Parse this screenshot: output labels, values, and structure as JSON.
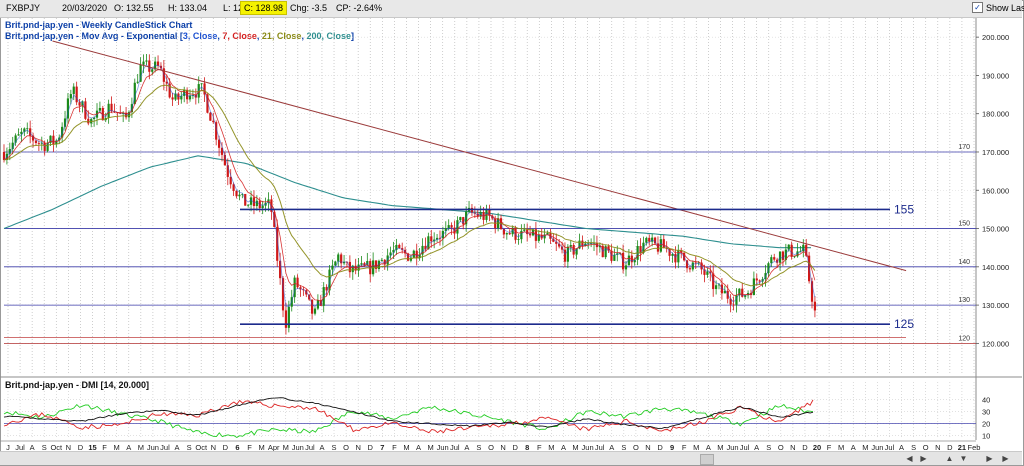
{
  "header": {
    "symbol": "FXBPJY",
    "date": "20/03/2020",
    "open": "O: 132.55",
    "high": "H: 133.04",
    "low": "L: 124.08",
    "close": "C: 128.98",
    "change": "Chg: -3.5",
    "change_pct": "CP: -2.64%",
    "show_last": "Show Last",
    "show_last_mark": "✓"
  },
  "legend": {
    "title": "Brit.pnd-jap.yen - Weekly CandleStick Chart",
    "mov_prefix": "Brit.pnd-jap.yen - Mov Avg - Exponential [",
    "ma1": "3, Close",
    "sep1": ", ",
    "ma2": "7, Close",
    "sep2": ", ",
    "ma3": "21, Close",
    "sep3": ", ",
    "ma4": "200, Close",
    "mov_suffix": "]",
    "dmi": "Brit.pnd-jap.yen - DMI [14, 20.000]"
  },
  "colors": {
    "ma3": "#d41e1e",
    "ma7": "#d41e1e",
    "ma21": "#8a8a14",
    "ma200": "#2e8f8f",
    "up": "#1a8a1a",
    "down": "#d01818",
    "trendline": "#9b3b3b",
    "support": "#1c2b8c",
    "grid_h": "#3a3aa8",
    "dmi_plus": "#22cc22",
    "dmi_minus": "#dd2222",
    "adx": "#111111"
  },
  "chart_data": [
    {
      "type": "candlestick",
      "title": "Brit.pnd-jap.yen - Weekly CandleStick Chart",
      "ylim": [
        112,
        205
      ],
      "y_ticks": [
        120,
        130,
        140,
        150,
        160,
        170,
        180,
        190,
        200
      ],
      "y_tick_labels": [
        "120.000",
        "130.000",
        "140.000",
        "150.000",
        "160.000",
        "170.000",
        "180.000",
        "190.000",
        "200.000"
      ],
      "level_labels": [
        "170",
        "150",
        "140",
        "130",
        "120"
      ],
      "levels": [
        170,
        150,
        140,
        130,
        120
      ],
      "support_lines": [
        {
          "value": 155,
          "label": "155"
        },
        {
          "value": 125,
          "label": "125"
        }
      ],
      "trendline": {
        "x": [
          0.05,
          0.93
        ],
        "y": [
          199,
          139
        ]
      },
      "price_anchors": {
        "x": [
          0.0,
          0.02,
          0.04,
          0.055,
          0.07,
          0.09,
          0.11,
          0.125,
          0.14,
          0.16,
          0.175,
          0.19,
          0.205,
          0.215,
          0.23,
          0.245,
          0.26,
          0.275,
          0.29,
          0.3,
          0.31,
          0.32,
          0.335,
          0.345,
          0.355,
          0.365,
          0.38,
          0.4,
          0.42,
          0.44,
          0.46,
          0.48,
          0.5,
          0.52,
          0.54,
          0.56,
          0.58,
          0.6,
          0.62,
          0.64,
          0.66,
          0.68,
          0.7,
          0.72,
          0.735,
          0.75,
          0.765,
          0.78,
          0.795,
          0.81,
          0.825,
          0.836
        ],
        "y": [
          170,
          175,
          172,
          173,
          186,
          178,
          182,
          178,
          192,
          192,
          183,
          186,
          186,
          178,
          165,
          157,
          156,
          156,
          125,
          136,
          132,
          127,
          137,
          143,
          139,
          139,
          140,
          144,
          143,
          148,
          149,
          154,
          153,
          149,
          148,
          147,
          143,
          147,
          144,
          141,
          146,
          145,
          142,
          139,
          134,
          132,
          133,
          138,
          143,
          144,
          144,
          128
        ]
      },
      "ma200_anchors": {
        "x": [
          0.0,
          0.05,
          0.1,
          0.15,
          0.2,
          0.25,
          0.3,
          0.35,
          0.4,
          0.45,
          0.5,
          0.55,
          0.6,
          0.65,
          0.7,
          0.75,
          0.8,
          0.836
        ],
        "y": [
          150,
          155,
          161,
          166,
          169,
          167,
          162,
          158,
          156,
          155,
          154,
          152,
          150,
          149,
          148,
          146,
          145,
          145
        ]
      },
      "dmi": {
        "ylim": [
          8,
          48
        ],
        "y_ticks": [
          10,
          20,
          30,
          40
        ],
        "y_tick_labels": [
          "10",
          "20",
          "30",
          "40"
        ],
        "plus_anchors": {
          "x": [
            0.0,
            0.04,
            0.08,
            0.12,
            0.16,
            0.2,
            0.24,
            0.28,
            0.32,
            0.36,
            0.4,
            0.44,
            0.48,
            0.52,
            0.56,
            0.6,
            0.64,
            0.68,
            0.72,
            0.76,
            0.8,
            0.836
          ],
          "y": [
            30,
            25,
            36,
            28,
            22,
            12,
            10,
            15,
            13,
            31,
            24,
            34,
            28,
            22,
            15,
            30,
            26,
            33,
            28,
            20,
            35,
            29
          ]
        },
        "minus_anchors": {
          "x": [
            0.0,
            0.04,
            0.08,
            0.12,
            0.16,
            0.2,
            0.24,
            0.28,
            0.32,
            0.36,
            0.4,
            0.44,
            0.48,
            0.52,
            0.56,
            0.6,
            0.64,
            0.68,
            0.72,
            0.76,
            0.8,
            0.836
          ],
          "y": [
            20,
            28,
            17,
            19,
            28,
            27,
            38,
            35,
            33,
            15,
            20,
            13,
            16,
            20,
            24,
            15,
            22,
            14,
            21,
            34,
            20,
            40
          ]
        },
        "adx_anchors": {
          "x": [
            0.0,
            0.04,
            0.08,
            0.12,
            0.16,
            0.2,
            0.24,
            0.28,
            0.32,
            0.36,
            0.4,
            0.44,
            0.48,
            0.52,
            0.56,
            0.6,
            0.64,
            0.68,
            0.72,
            0.76,
            0.8,
            0.836
          ],
          "y": [
            26,
            24,
            22,
            28,
            31,
            27,
            35,
            42,
            37,
            30,
            22,
            20,
            18,
            21,
            17,
            24,
            19,
            16,
            25,
            34,
            25,
            30
          ]
        }
      },
      "x_ticks": [
        "J",
        "Jul",
        "A",
        "S",
        "Oct",
        "N",
        "D",
        "15",
        "F",
        "M",
        "A",
        "M",
        "Jun",
        "Jul",
        "A",
        "S",
        "Oct",
        "N",
        "D",
        "6",
        "F",
        "M",
        "Apr",
        "M",
        "Jun",
        "Jul",
        "A",
        "S",
        "O",
        "N",
        "D",
        "7",
        "F",
        "M",
        "A",
        "M",
        "Jun",
        "Jul",
        "A",
        "S",
        "O",
        "N",
        "D",
        "8",
        "F",
        "M",
        "A",
        "M",
        "Jun",
        "Jul",
        "A",
        "S",
        "O",
        "N",
        "D",
        "9",
        "F",
        "M",
        "A",
        "M",
        "Jun",
        "Jul",
        "A",
        "S",
        "O",
        "N",
        "D",
        "20",
        "F",
        "M",
        "A",
        "M",
        "Jun",
        "Jul",
        "A",
        "S",
        "O",
        "N",
        "D",
        "21",
        "Feb"
      ]
    }
  ]
}
